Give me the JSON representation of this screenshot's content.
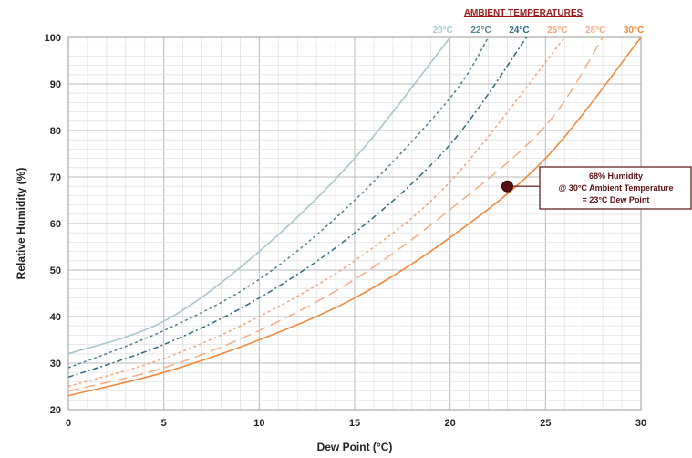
{
  "chart_data": {
    "type": "line",
    "xlabel": "Dew Point (°C)",
    "ylabel": "Relative Humidity (%)",
    "xlim": [
      0,
      30
    ],
    "ylim": [
      20,
      100
    ],
    "x_ticks": [
      "0",
      "5",
      "10",
      "15",
      "20",
      "25",
      "30"
    ],
    "y_ticks": [
      "20",
      "30",
      "40",
      "50",
      "60",
      "70",
      "80",
      "90",
      "100"
    ],
    "grid": true,
    "legend_title": "AMBIENT TEMPERATURES",
    "legend_position": "top-right",
    "series": [
      {
        "name": "20°C",
        "ambient": 20,
        "color": "#a9c6cf",
        "dash": "solid",
        "x": [
          0,
          5,
          10,
          15,
          20
        ],
        "y": [
          32,
          39,
          54,
          74,
          100
        ]
      },
      {
        "name": "22°C",
        "ambient": 22,
        "color": "#4f7f93",
        "dash": "short",
        "x": [
          0,
          5,
          10,
          15,
          20,
          22
        ],
        "y": [
          29,
          37,
          48,
          65,
          87,
          100
        ]
      },
      {
        "name": "24°C",
        "ambient": 24,
        "color": "#2e6b82",
        "dash": "dashdot",
        "x": [
          0,
          5,
          10,
          15,
          20,
          24
        ],
        "y": [
          27,
          34,
          44,
          58,
          77,
          100
        ]
      },
      {
        "name": "26°C",
        "ambient": 26,
        "color": "#f2a37a",
        "dash": "short",
        "x": [
          0,
          5,
          10,
          15,
          20,
          26
        ],
        "y": [
          25,
          31,
          40,
          52,
          69,
          100
        ]
      },
      {
        "name": "28°C",
        "ambient": 28,
        "color": "#f3ae87",
        "dash": "long",
        "x": [
          0,
          5,
          10,
          15,
          20,
          25,
          28
        ],
        "y": [
          24,
          29,
          37,
          48,
          63,
          81,
          100
        ]
      },
      {
        "name": "30°C",
        "ambient": 30,
        "color": "#f08a3c",
        "dash": "solid",
        "x": [
          0,
          5,
          10,
          15,
          20,
          25,
          30
        ],
        "y": [
          23,
          28,
          35,
          44,
          57,
          74,
          100
        ]
      }
    ],
    "annotation": {
      "point": {
        "x": 23,
        "y": 68
      },
      "marker_color": "#5a0f12",
      "lines": [
        "68% Humidity",
        "@ 30°C Ambient Temperature",
        "= 23°C Dew Point"
      ]
    }
  }
}
